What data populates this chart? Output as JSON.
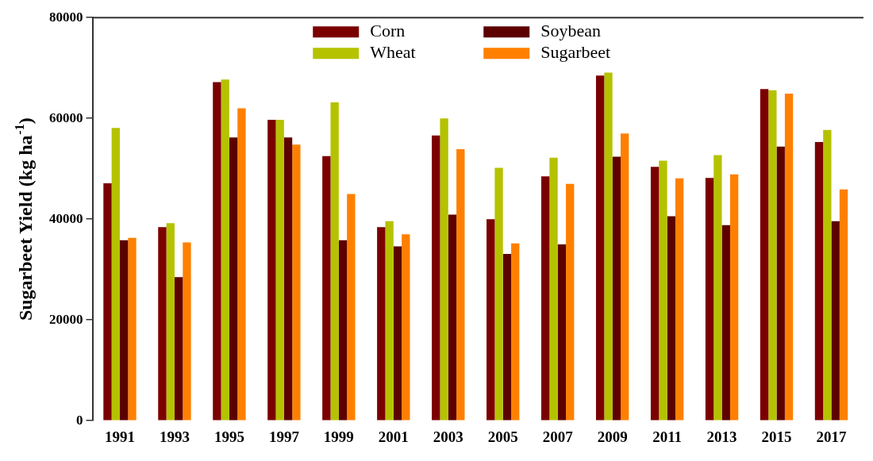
{
  "chart_data": {
    "type": "bar",
    "ylabel": "Sugarbeet Yield (kg ha$^{-1}$)",
    "categories": [
      "1991",
      "1993",
      "1995",
      "1997",
      "1999",
      "2001",
      "2003",
      "2005",
      "2007",
      "2009",
      "2011",
      "2013",
      "2015",
      "2017"
    ],
    "series": [
      {
        "name": "Corn",
        "color": "#7b0000",
        "values": [
          47100,
          38400,
          67200,
          59700,
          52500,
          38400,
          56600,
          40000,
          48500,
          68500,
          50400,
          48200,
          65800,
          55300
        ]
      },
      {
        "name": "Wheat",
        "color": "#b5c200",
        "values": [
          58100,
          39200,
          67700,
          59700,
          63200,
          39600,
          60000,
          50200,
          52200,
          69100,
          51600,
          52700,
          65600,
          57700
        ]
      },
      {
        "name": "Soybean",
        "color": "#5c0000",
        "values": [
          35800,
          28500,
          56200,
          56200,
          35800,
          34600,
          40900,
          33100,
          35000,
          52400,
          40600,
          38800,
          54400,
          39600
        ]
      },
      {
        "name": "Sugarbeet",
        "color": "#ff8000",
        "values": [
          36300,
          35400,
          62000,
          54800,
          45000,
          37000,
          53900,
          35200,
          47000,
          57000,
          48100,
          48900,
          64900,
          45900
        ]
      }
    ],
    "ylim": [
      0,
      80000
    ],
    "yticks": [
      0,
      20000,
      40000,
      60000,
      80000
    ],
    "grid": false,
    "legend": "top"
  }
}
